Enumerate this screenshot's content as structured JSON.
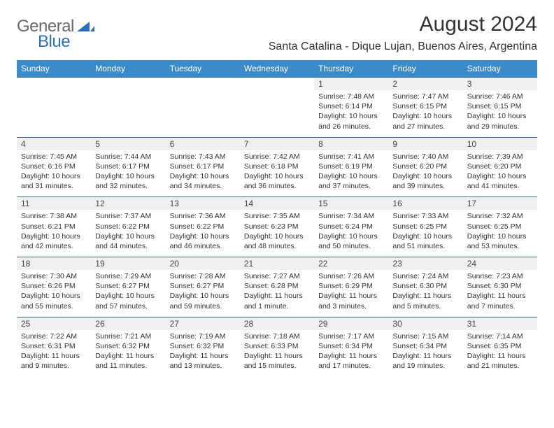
{
  "logo": {
    "text1": "General",
    "text2": "Blue"
  },
  "title": "August 2024",
  "location": "Santa Catalina - Dique Lujan, Buenos Aires, Argentina",
  "colors": {
    "header_bg": "#3a8bc9",
    "header_text": "#ffffff",
    "daynum_bg": "#f0f0f0",
    "border": "#3a6a9a",
    "logo_gray": "#6a6a6a",
    "logo_blue": "#2a72b5"
  },
  "day_headers": [
    "Sunday",
    "Monday",
    "Tuesday",
    "Wednesday",
    "Thursday",
    "Friday",
    "Saturday"
  ],
  "weeks": [
    {
      "nums": [
        "",
        "",
        "",
        "",
        "1",
        "2",
        "3"
      ],
      "details": [
        "",
        "",
        "",
        "",
        "Sunrise: 7:48 AM\nSunset: 6:14 PM\nDaylight: 10 hours and 26 minutes.",
        "Sunrise: 7:47 AM\nSunset: 6:15 PM\nDaylight: 10 hours and 27 minutes.",
        "Sunrise: 7:46 AM\nSunset: 6:15 PM\nDaylight: 10 hours and 29 minutes."
      ]
    },
    {
      "nums": [
        "4",
        "5",
        "6",
        "7",
        "8",
        "9",
        "10"
      ],
      "details": [
        "Sunrise: 7:45 AM\nSunset: 6:16 PM\nDaylight: 10 hours and 31 minutes.",
        "Sunrise: 7:44 AM\nSunset: 6:17 PM\nDaylight: 10 hours and 32 minutes.",
        "Sunrise: 7:43 AM\nSunset: 6:17 PM\nDaylight: 10 hours and 34 minutes.",
        "Sunrise: 7:42 AM\nSunset: 6:18 PM\nDaylight: 10 hours and 36 minutes.",
        "Sunrise: 7:41 AM\nSunset: 6:19 PM\nDaylight: 10 hours and 37 minutes.",
        "Sunrise: 7:40 AM\nSunset: 6:20 PM\nDaylight: 10 hours and 39 minutes.",
        "Sunrise: 7:39 AM\nSunset: 6:20 PM\nDaylight: 10 hours and 41 minutes."
      ]
    },
    {
      "nums": [
        "11",
        "12",
        "13",
        "14",
        "15",
        "16",
        "17"
      ],
      "details": [
        "Sunrise: 7:38 AM\nSunset: 6:21 PM\nDaylight: 10 hours and 42 minutes.",
        "Sunrise: 7:37 AM\nSunset: 6:22 PM\nDaylight: 10 hours and 44 minutes.",
        "Sunrise: 7:36 AM\nSunset: 6:22 PM\nDaylight: 10 hours and 46 minutes.",
        "Sunrise: 7:35 AM\nSunset: 6:23 PM\nDaylight: 10 hours and 48 minutes.",
        "Sunrise: 7:34 AM\nSunset: 6:24 PM\nDaylight: 10 hours and 50 minutes.",
        "Sunrise: 7:33 AM\nSunset: 6:25 PM\nDaylight: 10 hours and 51 minutes.",
        "Sunrise: 7:32 AM\nSunset: 6:25 PM\nDaylight: 10 hours and 53 minutes."
      ]
    },
    {
      "nums": [
        "18",
        "19",
        "20",
        "21",
        "22",
        "23",
        "24"
      ],
      "details": [
        "Sunrise: 7:30 AM\nSunset: 6:26 PM\nDaylight: 10 hours and 55 minutes.",
        "Sunrise: 7:29 AM\nSunset: 6:27 PM\nDaylight: 10 hours and 57 minutes.",
        "Sunrise: 7:28 AM\nSunset: 6:27 PM\nDaylight: 10 hours and 59 minutes.",
        "Sunrise: 7:27 AM\nSunset: 6:28 PM\nDaylight: 11 hours and 1 minute.",
        "Sunrise: 7:26 AM\nSunset: 6:29 PM\nDaylight: 11 hours and 3 minutes.",
        "Sunrise: 7:24 AM\nSunset: 6:30 PM\nDaylight: 11 hours and 5 minutes.",
        "Sunrise: 7:23 AM\nSunset: 6:30 PM\nDaylight: 11 hours and 7 minutes."
      ]
    },
    {
      "nums": [
        "25",
        "26",
        "27",
        "28",
        "29",
        "30",
        "31"
      ],
      "details": [
        "Sunrise: 7:22 AM\nSunset: 6:31 PM\nDaylight: 11 hours and 9 minutes.",
        "Sunrise: 7:21 AM\nSunset: 6:32 PM\nDaylight: 11 hours and 11 minutes.",
        "Sunrise: 7:19 AM\nSunset: 6:32 PM\nDaylight: 11 hours and 13 minutes.",
        "Sunrise: 7:18 AM\nSunset: 6:33 PM\nDaylight: 11 hours and 15 minutes.",
        "Sunrise: 7:17 AM\nSunset: 6:34 PM\nDaylight: 11 hours and 17 minutes.",
        "Sunrise: 7:15 AM\nSunset: 6:34 PM\nDaylight: 11 hours and 19 minutes.",
        "Sunrise: 7:14 AM\nSunset: 6:35 PM\nDaylight: 11 hours and 21 minutes."
      ]
    }
  ]
}
